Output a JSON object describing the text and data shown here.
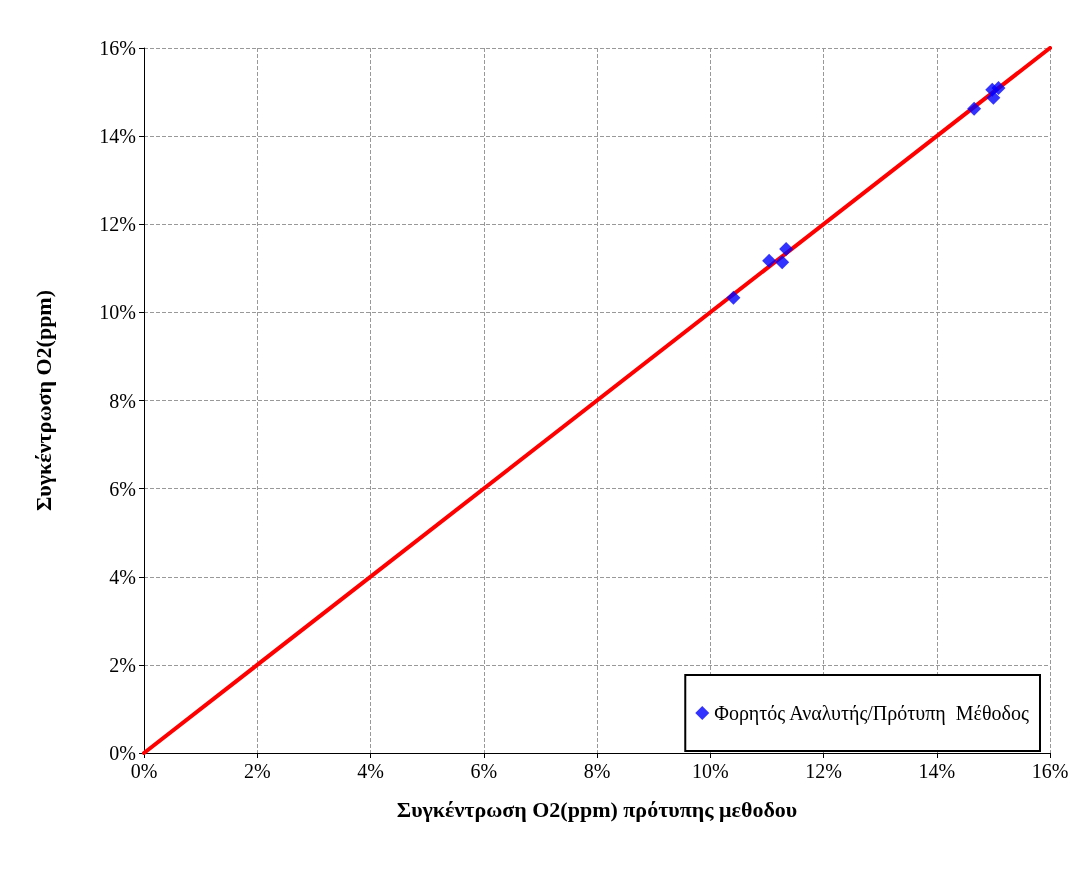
{
  "chart_data": {
    "type": "scatter",
    "xlabel": "Συγκέντρωση O2(ppm) πρότυπης μεθοδου",
    "ylabel": "Συγκέντρωση O2(ppm)",
    "xlim": [
      0,
      16
    ],
    "ylim": [
      0,
      16
    ],
    "xticks": [
      {
        "value": 0,
        "label": "0%"
      },
      {
        "value": 2,
        "label": "2%"
      },
      {
        "value": 4,
        "label": "4%"
      },
      {
        "value": 6,
        "label": "6%"
      },
      {
        "value": 8,
        "label": "8%"
      },
      {
        "value": 10,
        "label": "10%"
      },
      {
        "value": 12,
        "label": "12%"
      },
      {
        "value": 14,
        "label": "14%"
      },
      {
        "value": 16,
        "label": "16%"
      }
    ],
    "yticks": [
      {
        "value": 0,
        "label": "0%"
      },
      {
        "value": 2,
        "label": "2%"
      },
      {
        "value": 4,
        "label": "4%"
      },
      {
        "value": 6,
        "label": "6%"
      },
      {
        "value": 8,
        "label": "8%"
      },
      {
        "value": 10,
        "label": "10%"
      },
      {
        "value": 12,
        "label": "12%"
      },
      {
        "value": 14,
        "label": "14%"
      },
      {
        "value": 16,
        "label": "16%"
      }
    ],
    "grid": true,
    "legend": "bottom right",
    "marker": "diamond",
    "series": [
      {
        "name": "Φορητός Αναλυτής/Πρότυπη  Μέθοδος",
        "color": "#0000ff",
        "x": [
          10.41,
          11.04,
          11.27,
          11.34,
          14.66,
          15.0,
          14.98,
          15.09
        ],
        "values": [
          10.33,
          11.17,
          11.14,
          11.44,
          14.62,
          14.87,
          15.05,
          15.09
        ]
      },
      {
        "type": "line",
        "color": "#ff0000",
        "line_style": "solid",
        "marker": "none",
        "x": [
          0,
          16
        ],
        "values": [
          0,
          16
        ]
      }
    ]
  }
}
